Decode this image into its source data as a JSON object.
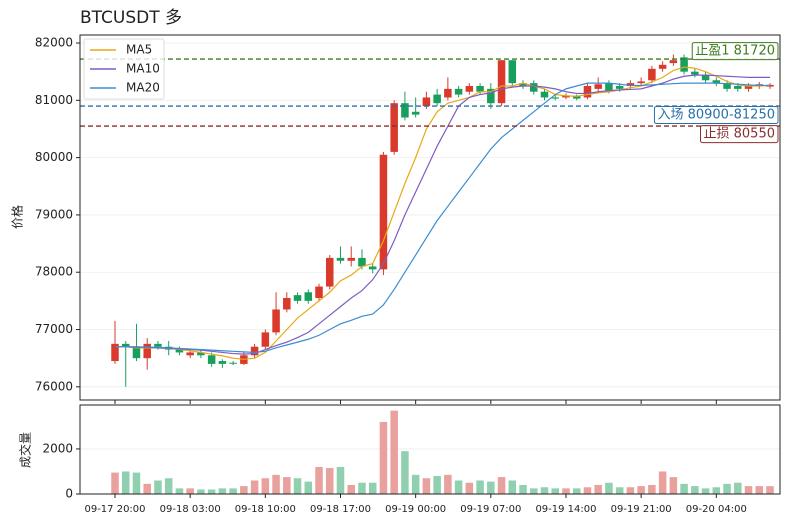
{
  "chart_data": {
    "type": "candlestick",
    "title": "BTCUSDT  多",
    "ylabel": "价格",
    "volume_ylabel": "成交量",
    "x": [
      "09-17 20:00",
      "09-17 21:00",
      "09-17 22:00",
      "09-17 23:00",
      "09-18 00:00",
      "09-18 01:00",
      "09-18 02:00",
      "09-18 03:00",
      "09-18 04:00",
      "09-18 05:00",
      "09-18 06:00",
      "09-18 07:00",
      "09-18 08:00",
      "09-18 09:00",
      "09-18 10:00",
      "09-18 11:00",
      "09-18 12:00",
      "09-18 13:00",
      "09-18 14:00",
      "09-18 15:00",
      "09-18 16:00",
      "09-18 17:00",
      "09-18 18:00",
      "09-18 19:00",
      "09-18 20:00",
      "09-18 21:00",
      "09-18 22:00",
      "09-18 23:00",
      "09-19 00:00",
      "09-19 01:00",
      "09-19 02:00",
      "09-19 03:00",
      "09-19 04:00",
      "09-19 05:00",
      "09-19 06:00",
      "09-19 07:00",
      "09-19 08:00",
      "09-19 09:00",
      "09-19 10:00",
      "09-19 11:00",
      "09-19 12:00",
      "09-19 13:00",
      "09-19 14:00",
      "09-19 15:00",
      "09-19 16:00",
      "09-19 17:00",
      "09-19 18:00",
      "09-19 19:00",
      "09-19 20:00",
      "09-19 21:00",
      "09-19 22:00",
      "09-19 23:00",
      "09-20 00:00",
      "09-20 01:00",
      "09-20 02:00",
      "09-20 03:00",
      "09-20 04:00",
      "09-20 05:00",
      "09-20 06:00",
      "09-20 07:00",
      "09-20 08:00",
      "09-20 09:00"
    ],
    "open": [
      76450,
      76750,
      76700,
      76500,
      76750,
      76700,
      76650,
      76550,
      76600,
      76550,
      76450,
      76420,
      76400,
      76550,
      76700,
      76950,
      77350,
      77600,
      77650,
      77550,
      77750,
      78250,
      78200,
      78250,
      78100,
      78050,
      80100,
      80950,
      80800,
      80900,
      81100,
      81050,
      81200,
      81150,
      81250,
      81200,
      80950,
      81700,
      81300,
      81300,
      81150,
      81050,
      81050,
      81080,
      81050,
      81200,
      81300,
      81250,
      81250,
      81300,
      81350,
      81550,
      81650,
      81750,
      81500,
      81450,
      81350,
      81300,
      81250,
      81200,
      81250,
      81240
    ],
    "high": [
      77150,
      76800,
      77100,
      76850,
      76800,
      76800,
      76700,
      76650,
      76650,
      76600,
      76480,
      76450,
      76600,
      76750,
      77000,
      77650,
      77650,
      77650,
      77700,
      77800,
      78300,
      78450,
      78450,
      78400,
      78150,
      80100,
      81000,
      81150,
      81050,
      81150,
      81200,
      81400,
      81250,
      81300,
      81300,
      81300,
      81700,
      81700,
      81350,
      81350,
      81200,
      81100,
      81120,
      81100,
      81300,
      81400,
      81350,
      81300,
      81350,
      81400,
      81600,
      81680,
      81800,
      81800,
      81550,
      81500,
      81400,
      81350,
      81300,
      81300,
      81320,
      81300
    ],
    "low": [
      76400,
      76000,
      76450,
      76300,
      76650,
      76550,
      76550,
      76500,
      76500,
      76350,
      76330,
      76380,
      76380,
      76500,
      76650,
      76900,
      77300,
      77450,
      77450,
      77500,
      77700,
      78150,
      78100,
      78050,
      77980,
      77950,
      80050,
      80650,
      80700,
      80850,
      80900,
      81000,
      81050,
      81100,
      81100,
      80850,
      80900,
      81250,
      81200,
      81100,
      81000,
      81000,
      81020,
      81000,
      81020,
      81150,
      81120,
      81150,
      81200,
      81250,
      81300,
      81500,
      81600,
      81450,
      81400,
      81300,
      81250,
      81150,
      81150,
      81150,
      81200,
      81200
    ],
    "close": [
      76750,
      76700,
      76500,
      76750,
      76700,
      76650,
      76600,
      76600,
      76550,
      76400,
      76400,
      76410,
      76550,
      76700,
      76950,
      77350,
      77550,
      77500,
      77500,
      77750,
      78250,
      78200,
      78250,
      78100,
      78050,
      80050,
      80950,
      80700,
      80750,
      81050,
      80950,
      81200,
      81100,
      81250,
      81150,
      80950,
      81700,
      81300,
      81250,
      81150,
      81050,
      81030,
      81080,
      81030,
      81250,
      81280,
      81150,
      81200,
      81300,
      81330,
      81550,
      81620,
      81700,
      81500,
      81450,
      81350,
      81300,
      81200,
      81200,
      81250,
      81280,
      81270
    ],
    "up_color": "#d93a2b",
    "down_color": "#17a05d",
    "volume": [
      950,
      1000,
      950,
      450,
      600,
      700,
      250,
      250,
      200,
      200,
      250,
      250,
      350,
      600,
      700,
      850,
      750,
      700,
      550,
      1200,
      1150,
      1200,
      400,
      500,
      500,
      3200,
      3700,
      1900,
      850,
      700,
      800,
      850,
      600,
      500,
      600,
      550,
      750,
      600,
      400,
      250,
      300,
      250,
      250,
      250,
      300,
      400,
      500,
      300,
      300,
      350,
      400,
      1000,
      750,
      450,
      350,
      250,
      300,
      450,
      500,
      350,
      350,
      350
    ],
    "volume_up_color": "#e8a19c",
    "volume_down_color": "#90d0b0",
    "series": [
      {
        "name": "MA5",
        "color": "#e8a913",
        "values": [
          76700,
          76700,
          76680,
          76680,
          76680,
          76670,
          76650,
          76630,
          76600,
          76570,
          76540,
          76500,
          76480,
          76500,
          76600,
          76800,
          77000,
          77200,
          77350,
          77500,
          77650,
          77850,
          77950,
          78100,
          78150,
          78550,
          79050,
          79550,
          80000,
          80500,
          80800,
          80950,
          81000,
          81050,
          81150,
          81150,
          81250,
          81250,
          81300,
          81250,
          81200,
          81100,
          81080,
          81070,
          81100,
          81130,
          81150,
          81180,
          81220,
          81250,
          81320,
          81400,
          81520,
          81580,
          81560,
          81500,
          81420,
          81330,
          81270,
          81250,
          81250,
          81260
        ]
      },
      {
        "name": "MA10",
        "color": "#7e5cc4",
        "values": [
          76700,
          76700,
          76690,
          76690,
          76680,
          76670,
          76660,
          76650,
          76640,
          76620,
          76600,
          76580,
          76570,
          76580,
          76650,
          76720,
          76780,
          76860,
          76950,
          77100,
          77250,
          77400,
          77550,
          77680,
          77870,
          78150,
          78550,
          79000,
          79400,
          79800,
          80200,
          80550,
          80900,
          81050,
          81100,
          81130,
          81200,
          81230,
          81250,
          81250,
          81230,
          81200,
          81150,
          81120,
          81120,
          81150,
          81170,
          81180,
          81190,
          81200,
          81250,
          81300,
          81370,
          81420,
          81440,
          81440,
          81430,
          81420,
          81410,
          81400,
          81400,
          81400
        ]
      },
      {
        "name": "MA20",
        "color": "#3b8dd0",
        "values": [
          76700,
          76700,
          76700,
          76690,
          76690,
          76680,
          76670,
          76660,
          76650,
          76640,
          76630,
          76620,
          76610,
          76600,
          76620,
          76680,
          76730,
          76780,
          76830,
          76900,
          77000,
          77100,
          77160,
          77230,
          77270,
          77430,
          77700,
          78000,
          78300,
          78600,
          78900,
          79150,
          79400,
          79650,
          79900,
          80150,
          80350,
          80500,
          80650,
          80800,
          80950,
          81100,
          81200,
          81250,
          81300,
          81300,
          81300,
          81280,
          81260,
          81260,
          81270,
          81280,
          81290,
          81300,
          81300,
          81300,
          81300,
          81290,
          81280,
          81270,
          81260,
          81260
        ]
      }
    ],
    "levels": [
      {
        "value": 81720,
        "label": "止盈1 81720",
        "color": "#3f7a1f"
      },
      {
        "value": 80900,
        "label": "入场 80900-81250",
        "color": "#2a6fa8"
      },
      {
        "value": 80550,
        "label": "止损 80550",
        "color": "#8b2e2e"
      }
    ],
    "ylim": [
      75770,
      82140
    ],
    "yticks": [
      76000,
      77000,
      78000,
      79000,
      80000,
      81000,
      82000
    ],
    "volume_ylim": [
      0,
      3950
    ],
    "volume_yticks": [
      0,
      2000
    ],
    "xticks": [
      "09-17 20:00",
      "09-18 03:00",
      "09-18 10:00",
      "09-18 17:00",
      "09-19 00:00",
      "09-19 07:00",
      "09-19 14:00",
      "09-19 21:00",
      "09-20 04:00"
    ],
    "grid": true
  }
}
